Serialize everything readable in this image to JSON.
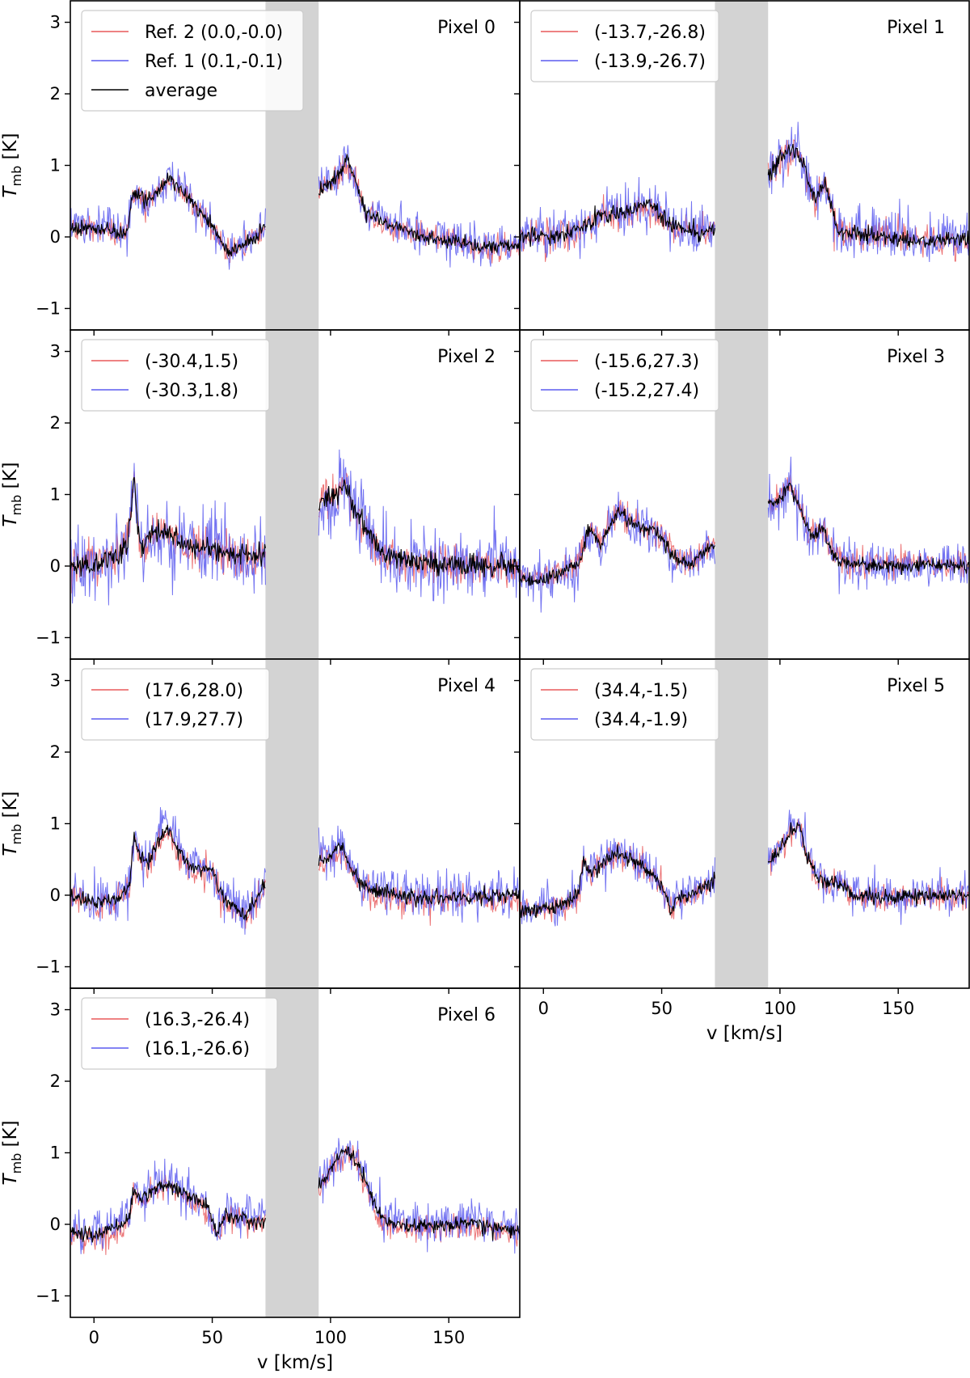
{
  "chart_data": {
    "type": "line",
    "title": "",
    "xlabel": "v [km/s]",
    "ylabel_main": "T",
    "ylabel_sub": "mb",
    "ylabel_unit": "[K]",
    "xlim": [
      -10,
      180
    ],
    "ylim": [
      -1.3,
      3.3
    ],
    "x_ticks": [
      0,
      50,
      100,
      150
    ],
    "x_tick_labels": [
      "0",
      "50",
      "100",
      "150"
    ],
    "y_ticks": [
      -1,
      0,
      1,
      2,
      3
    ],
    "y_tick_labels": [
      "−1",
      "0",
      "1",
      "2",
      "3"
    ],
    "masked_velocity_range": [
      72.5,
      95
    ],
    "series_colors": {
      "ref2": "#e8585a",
      "ref1": "#5b5bef",
      "average": "#000000"
    },
    "mask_color": "#d3d3d3",
    "panels": [
      {
        "title": "Pixel 0",
        "legend": [
          "Ref. 2 (0.0,-0.0)",
          "Ref. 1 (0.1,-0.1)",
          "average"
        ],
        "profile": [
          [
            -10,
            0.15
          ],
          [
            0,
            0.12
          ],
          [
            10,
            0.05
          ],
          [
            14,
            0.05
          ],
          [
            16,
            0.55
          ],
          [
            19,
            0.62
          ],
          [
            22,
            0.45
          ],
          [
            27,
            0.65
          ],
          [
            32,
            0.82
          ],
          [
            36,
            0.7
          ],
          [
            42,
            0.45
          ],
          [
            48,
            0.25
          ],
          [
            52,
            0.05
          ],
          [
            56,
            -0.18
          ],
          [
            60,
            -0.18
          ],
          [
            64,
            -0.12
          ],
          [
            68,
            0.0
          ],
          [
            72,
            0.15
          ],
          [
            95,
            0.65
          ],
          [
            100,
            0.78
          ],
          [
            104,
            0.9
          ],
          [
            107,
            1.05
          ],
          [
            111,
            0.75
          ],
          [
            115,
            0.35
          ],
          [
            122,
            0.2
          ],
          [
            135,
            0.05
          ],
          [
            150,
            -0.05
          ],
          [
            165,
            -0.15
          ],
          [
            180,
            -0.12
          ]
        ]
      },
      {
        "title": "Pixel 1",
        "legend": [
          "(-13.7,-26.8)",
          "(-13.9,-26.7)"
        ],
        "profile": [
          [
            -10,
            0.0
          ],
          [
            0,
            0.0
          ],
          [
            10,
            0.05
          ],
          [
            17,
            0.15
          ],
          [
            22,
            0.25
          ],
          [
            28,
            0.32
          ],
          [
            35,
            0.35
          ],
          [
            42,
            0.48
          ],
          [
            46,
            0.42
          ],
          [
            52,
            0.22
          ],
          [
            58,
            0.1
          ],
          [
            65,
            0.05
          ],
          [
            72,
            0.1
          ],
          [
            95,
            0.85
          ],
          [
            98,
            1.0
          ],
          [
            102,
            1.15
          ],
          [
            106,
            1.25
          ],
          [
            110,
            1.0
          ],
          [
            113,
            0.7
          ],
          [
            115,
            0.5
          ],
          [
            118,
            0.75
          ],
          [
            121,
            0.55
          ],
          [
            124,
            0.1
          ],
          [
            130,
            0.05
          ],
          [
            145,
            0.0
          ],
          [
            160,
            -0.05
          ],
          [
            180,
            -0.05
          ]
        ]
      },
      {
        "title": "Pixel 2",
        "legend": [
          "(-30.4,1.5)",
          "(-30.3,1.8)"
        ],
        "profile": [
          [
            -10,
            0.05
          ],
          [
            0,
            0.0
          ],
          [
            10,
            0.15
          ],
          [
            14,
            0.35
          ],
          [
            16,
            0.9
          ],
          [
            17,
            1.25
          ],
          [
            18,
            0.7
          ],
          [
            20,
            0.25
          ],
          [
            25,
            0.45
          ],
          [
            30,
            0.45
          ],
          [
            40,
            0.3
          ],
          [
            50,
            0.22
          ],
          [
            60,
            0.15
          ],
          [
            72,
            0.1
          ],
          [
            95,
            0.85
          ],
          [
            99,
            0.95
          ],
          [
            103,
            1.0
          ],
          [
            106,
            1.15
          ],
          [
            110,
            0.8
          ],
          [
            115,
            0.55
          ],
          [
            120,
            0.25
          ],
          [
            130,
            0.08
          ],
          [
            145,
            0.05
          ],
          [
            160,
            0.0
          ],
          [
            180,
            0.0
          ]
        ]
      },
      {
        "title": "Pixel 3",
        "legend": [
          "(-15.6,27.3)",
          "(-15.2,27.4)"
        ],
        "profile": [
          [
            -10,
            -0.15
          ],
          [
            0,
            -0.18
          ],
          [
            10,
            -0.05
          ],
          [
            15,
            0.05
          ],
          [
            18,
            0.45
          ],
          [
            21,
            0.5
          ],
          [
            24,
            0.28
          ],
          [
            28,
            0.55
          ],
          [
            32,
            0.78
          ],
          [
            36,
            0.62
          ],
          [
            42,
            0.55
          ],
          [
            47,
            0.5
          ],
          [
            52,
            0.28
          ],
          [
            58,
            0.05
          ],
          [
            63,
            0.05
          ],
          [
            68,
            0.22
          ],
          [
            72,
            0.28
          ],
          [
            95,
            0.85
          ],
          [
            100,
            0.95
          ],
          [
            104,
            1.15
          ],
          [
            107,
            0.9
          ],
          [
            112,
            0.5
          ],
          [
            115,
            0.45
          ],
          [
            118,
            0.55
          ],
          [
            121,
            0.25
          ],
          [
            126,
            0.05
          ],
          [
            140,
            0.0
          ],
          [
            160,
            0.02
          ],
          [
            180,
            0.0
          ]
        ]
      },
      {
        "title": "Pixel 4",
        "legend": [
          "(17.6,28.0)",
          "(17.9,27.7)"
        ],
        "profile": [
          [
            -10,
            0.0
          ],
          [
            0,
            -0.1
          ],
          [
            10,
            -0.05
          ],
          [
            15,
            0.1
          ],
          [
            17,
            0.85
          ],
          [
            19,
            0.55
          ],
          [
            23,
            0.45
          ],
          [
            28,
            0.8
          ],
          [
            31,
            0.95
          ],
          [
            34,
            0.75
          ],
          [
            40,
            0.4
          ],
          [
            45,
            0.35
          ],
          [
            50,
            0.35
          ],
          [
            55,
            -0.05
          ],
          [
            60,
            -0.15
          ],
          [
            64,
            -0.3
          ],
          [
            67,
            -0.15
          ],
          [
            72,
            0.15
          ],
          [
            95,
            0.5
          ],
          [
            100,
            0.55
          ],
          [
            104,
            0.7
          ],
          [
            107,
            0.5
          ],
          [
            112,
            0.2
          ],
          [
            118,
            0.05
          ],
          [
            130,
            0.0
          ],
          [
            145,
            -0.05
          ],
          [
            160,
            -0.02
          ],
          [
            180,
            0.0
          ]
        ]
      },
      {
        "title": "Pixel 5",
        "legend": [
          "(34.4,-1.5)",
          "(34.4,-1.9)"
        ],
        "profile": [
          [
            -10,
            -0.2
          ],
          [
            0,
            -0.2
          ],
          [
            10,
            -0.1
          ],
          [
            15,
            0.05
          ],
          [
            17,
            0.5
          ],
          [
            20,
            0.3
          ],
          [
            25,
            0.45
          ],
          [
            30,
            0.58
          ],
          [
            36,
            0.52
          ],
          [
            42,
            0.4
          ],
          [
            48,
            0.22
          ],
          [
            52,
            0.0
          ],
          [
            54,
            -0.25
          ],
          [
            56,
            -0.05
          ],
          [
            60,
            0.0
          ],
          [
            65,
            0.05
          ],
          [
            72,
            0.2
          ],
          [
            95,
            0.45
          ],
          [
            100,
            0.65
          ],
          [
            105,
            0.9
          ],
          [
            108,
            1.0
          ],
          [
            111,
            0.6
          ],
          [
            115,
            0.25
          ],
          [
            120,
            0.15
          ],
          [
            125,
            0.2
          ],
          [
            130,
            0.0
          ],
          [
            145,
            -0.05
          ],
          [
            160,
            0.0
          ],
          [
            180,
            0.0
          ]
        ]
      },
      {
        "title": "Pixel 6",
        "legend": [
          "(16.3,-26.4)",
          "(16.1,-26.6)"
        ],
        "profile": [
          [
            -10,
            -0.1
          ],
          [
            0,
            -0.15
          ],
          [
            10,
            -0.05
          ],
          [
            15,
            0.1
          ],
          [
            17,
            0.5
          ],
          [
            20,
            0.35
          ],
          [
            25,
            0.5
          ],
          [
            30,
            0.55
          ],
          [
            35,
            0.5
          ],
          [
            42,
            0.35
          ],
          [
            48,
            0.25
          ],
          [
            52,
            -0.15
          ],
          [
            55,
            0.1
          ],
          [
            60,
            0.1
          ],
          [
            72,
            0.05
          ],
          [
            95,
            0.55
          ],
          [
            99,
            0.7
          ],
          [
            103,
            0.95
          ],
          [
            107,
            1.05
          ],
          [
            111,
            0.85
          ],
          [
            115,
            0.6
          ],
          [
            120,
            0.15
          ],
          [
            125,
            0.02
          ],
          [
            140,
            -0.02
          ],
          [
            160,
            0.02
          ],
          [
            180,
            -0.1
          ]
        ]
      }
    ]
  }
}
